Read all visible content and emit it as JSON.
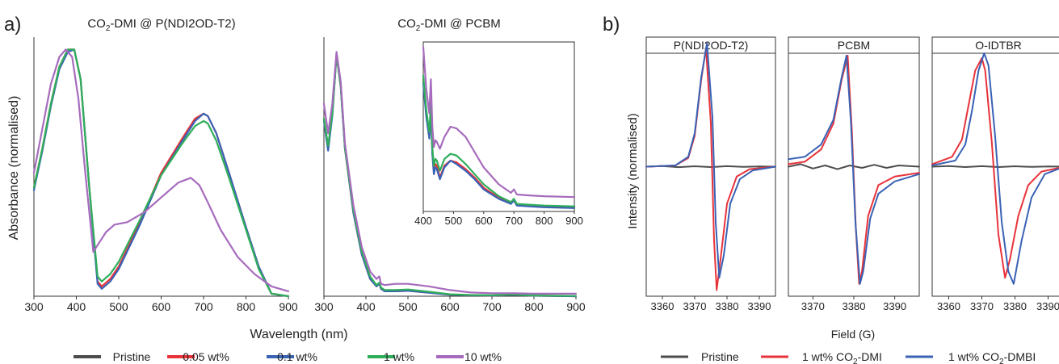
{
  "panel_a": {
    "label": "a)",
    "title_left_parts": [
      "CO",
      "2",
      "-DMI @ P(NDI2OD-T2)"
    ],
    "title_right_parts": [
      "CO",
      "2",
      "-DMI @ PCBM"
    ],
    "xlabel": "Wavelength (nm)",
    "ylabel": "Absorbance (normalised)",
    "legend": [
      {
        "name": "Pristine",
        "color": "#4d4d4d"
      },
      {
        "name": "0.05 wt%",
        "color": "#e8333a"
      },
      {
        "name": "0.1 wt%",
        "color": "#3a62b5"
      },
      {
        "name": "1 wt%",
        "color": "#2fae5a"
      },
      {
        "name": "10 wt%",
        "color": "#a66bbd"
      }
    ]
  },
  "panel_b": {
    "label": "b)",
    "xlabel": "Field (G)",
    "ylabel": "Intensity (normalised)",
    "legend": [
      {
        "parts": [
          "Pristine"
        ],
        "color": "#4d4d4d"
      },
      {
        "parts": [
          "1 wt% CO",
          "2",
          "-DMI"
        ],
        "color": "#e8333a"
      },
      {
        "parts": [
          "1 wt% CO",
          "2",
          "-DMBI"
        ],
        "color": "#3a62b5"
      }
    ]
  },
  "chart_data": [
    {
      "type": "line",
      "id": "abs_polymer",
      "x_range": [
        300,
        900
      ],
      "x_ticks": [
        300,
        400,
        500,
        600,
        700,
        800,
        900
      ],
      "y_range": [
        0,
        1.05
      ],
      "series": [
        {
          "name": "0.05 wt%",
          "color": "#e8333a",
          "x": [
            300,
            320,
            340,
            360,
            380,
            395,
            410,
            430,
            450,
            460,
            480,
            500,
            550,
            600,
            650,
            680,
            700,
            710,
            730,
            760,
            800,
            830,
            860,
            900
          ],
          "y": [
            0.44,
            0.6,
            0.78,
            0.93,
            1.0,
            1.0,
            0.88,
            0.45,
            0.06,
            0.04,
            0.07,
            0.12,
            0.3,
            0.5,
            0.64,
            0.72,
            0.74,
            0.73,
            0.66,
            0.5,
            0.28,
            0.12,
            0.01,
            0
          ]
        },
        {
          "name": "0.1 wt%",
          "color": "#3a62b5",
          "x": [
            300,
            320,
            340,
            360,
            380,
            395,
            410,
            430,
            450,
            460,
            480,
            500,
            550,
            600,
            650,
            680,
            700,
            710,
            730,
            760,
            800,
            830,
            860,
            900
          ],
          "y": [
            0.43,
            0.59,
            0.77,
            0.92,
            0.99,
            1.0,
            0.88,
            0.45,
            0.05,
            0.03,
            0.06,
            0.11,
            0.29,
            0.49,
            0.63,
            0.71,
            0.74,
            0.73,
            0.66,
            0.5,
            0.28,
            0.12,
            0.01,
            0
          ]
        },
        {
          "name": "1 wt%",
          "color": "#2fae5a",
          "x": [
            300,
            320,
            340,
            360,
            380,
            395,
            410,
            430,
            450,
            460,
            480,
            500,
            550,
            600,
            650,
            680,
            700,
            710,
            730,
            760,
            800,
            830,
            860,
            900
          ],
          "y": [
            0.44,
            0.6,
            0.78,
            0.93,
            1.0,
            1.0,
            0.88,
            0.45,
            0.08,
            0.06,
            0.09,
            0.14,
            0.31,
            0.49,
            0.62,
            0.69,
            0.71,
            0.7,
            0.63,
            0.48,
            0.27,
            0.11,
            0.01,
            0
          ]
        },
        {
          "name": "10 wt%",
          "color": "#a66bbd",
          "x": [
            300,
            320,
            340,
            360,
            375,
            390,
            405,
            420,
            440,
            455,
            470,
            490,
            520,
            560,
            600,
            640,
            670,
            690,
            710,
            740,
            780,
            820,
            860,
            900
          ],
          "y": [
            0.5,
            0.68,
            0.86,
            0.97,
            1.0,
            0.97,
            0.8,
            0.52,
            0.18,
            0.22,
            0.26,
            0.29,
            0.3,
            0.34,
            0.4,
            0.46,
            0.48,
            0.45,
            0.38,
            0.27,
            0.16,
            0.09,
            0.04,
            0.02
          ]
        }
      ]
    },
    {
      "type": "line",
      "id": "abs_pcbm",
      "x_range": [
        300,
        900
      ],
      "x_ticks": [
        300,
        400,
        500,
        600,
        700,
        800,
        900
      ],
      "y_range": [
        0,
        1.05
      ],
      "series": [
        {
          "name": "0.05 wt%",
          "color": "#e8333a",
          "x": [
            300,
            310,
            320,
            330,
            340,
            350,
            370,
            390,
            410,
            425,
            432,
            436,
            445,
            470,
            500,
            550,
            600,
            650,
            700,
            750,
            800,
            900
          ],
          "y": [
            0.72,
            0.6,
            0.74,
            0.98,
            0.85,
            0.6,
            0.34,
            0.17,
            0.07,
            0.04,
            0.05,
            0.03,
            0.02,
            0.02,
            0.022,
            0.014,
            0.006,
            0.004,
            0.003,
            0.006,
            0.002,
            0
          ]
        },
        {
          "name": "0.1 wt%",
          "color": "#3a62b5",
          "x": [
            300,
            310,
            320,
            330,
            340,
            350,
            370,
            390,
            410,
            425,
            432,
            436,
            445,
            470,
            500,
            550,
            600,
            650,
            700,
            750,
            800,
            900
          ],
          "y": [
            0.71,
            0.59,
            0.73,
            0.98,
            0.85,
            0.6,
            0.34,
            0.17,
            0.07,
            0.04,
            0.05,
            0.03,
            0.02,
            0.02,
            0.022,
            0.014,
            0.006,
            0.004,
            0.003,
            0.006,
            0.002,
            0
          ]
        },
        {
          "name": "1 wt%",
          "color": "#2fae5a",
          "x": [
            300,
            310,
            320,
            330,
            340,
            350,
            370,
            390,
            410,
            425,
            432,
            436,
            445,
            470,
            500,
            550,
            600,
            650,
            700,
            750,
            800,
            900
          ],
          "y": [
            0.72,
            0.61,
            0.74,
            0.98,
            0.85,
            0.6,
            0.35,
            0.18,
            0.08,
            0.045,
            0.055,
            0.035,
            0.025,
            0.025,
            0.027,
            0.018,
            0.008,
            0.005,
            0.004,
            0.007,
            0.003,
            0.001
          ]
        },
        {
          "name": "10 wt%",
          "color": "#a66bbd",
          "x": [
            300,
            310,
            320,
            330,
            340,
            350,
            370,
            390,
            410,
            425,
            432,
            436,
            445,
            470,
            500,
            550,
            600,
            650,
            700,
            750,
            800,
            900
          ],
          "y": [
            0.78,
            0.66,
            0.78,
            0.99,
            0.87,
            0.62,
            0.37,
            0.2,
            0.1,
            0.07,
            0.08,
            0.05,
            0.045,
            0.05,
            0.05,
            0.04,
            0.025,
            0.015,
            0.012,
            0.012,
            0.01,
            0.01
          ]
        }
      ]
    },
    {
      "type": "line",
      "id": "abs_pcbm_inset",
      "x_range": [
        400,
        900
      ],
      "x_ticks": [
        400,
        500,
        600,
        700,
        800,
        900
      ],
      "y_range": [
        0,
        1
      ],
      "series": [
        {
          "name": "0.05 wt%",
          "color": "#e8333a",
          "x": [
            400,
            410,
            420,
            425,
            430,
            435,
            440,
            445,
            455,
            470,
            490,
            510,
            540,
            570,
            600,
            650,
            690,
            700,
            710,
            750,
            800,
            900
          ],
          "y": [
            0.78,
            0.58,
            0.45,
            0.62,
            0.36,
            0.24,
            0.28,
            0.27,
            0.2,
            0.27,
            0.3,
            0.29,
            0.25,
            0.2,
            0.14,
            0.08,
            0.05,
            0.07,
            0.04,
            0.035,
            0.03,
            0.025
          ]
        },
        {
          "name": "0.1 wt%",
          "color": "#3a62b5",
          "x": [
            400,
            410,
            420,
            425,
            430,
            435,
            440,
            445,
            455,
            470,
            490,
            510,
            540,
            570,
            600,
            650,
            690,
            700,
            710,
            750,
            800,
            900
          ],
          "y": [
            0.76,
            0.56,
            0.43,
            0.6,
            0.34,
            0.22,
            0.26,
            0.25,
            0.19,
            0.26,
            0.3,
            0.28,
            0.24,
            0.19,
            0.13,
            0.075,
            0.045,
            0.065,
            0.035,
            0.03,
            0.025,
            0.02
          ]
        },
        {
          "name": "1 wt%",
          "color": "#2fae5a",
          "x": [
            400,
            410,
            420,
            425,
            430,
            435,
            440,
            445,
            455,
            470,
            490,
            510,
            540,
            570,
            600,
            650,
            690,
            700,
            710,
            750,
            800,
            900
          ],
          "y": [
            0.8,
            0.6,
            0.47,
            0.64,
            0.38,
            0.27,
            0.31,
            0.3,
            0.24,
            0.31,
            0.34,
            0.33,
            0.28,
            0.22,
            0.16,
            0.09,
            0.055,
            0.075,
            0.045,
            0.04,
            0.035,
            0.03
          ]
        },
        {
          "name": "10 wt%",
          "color": "#a66bbd",
          "x": [
            400,
            410,
            420,
            425,
            430,
            435,
            440,
            445,
            455,
            470,
            490,
            510,
            540,
            570,
            600,
            650,
            690,
            700,
            710,
            750,
            800,
            900
          ],
          "y": [
            0.97,
            0.72,
            0.58,
            0.78,
            0.5,
            0.38,
            0.42,
            0.41,
            0.37,
            0.44,
            0.5,
            0.49,
            0.44,
            0.35,
            0.26,
            0.16,
            0.11,
            0.13,
            0.1,
            0.095,
            0.09,
            0.085
          ]
        }
      ]
    },
    {
      "type": "line",
      "id": "epr_polymer",
      "title": "P(NDI2OD-T2)",
      "x_range": [
        3355,
        3395
      ],
      "x_ticks": [
        3360,
        3370,
        3380,
        3390
      ],
      "y_range": [
        -1.05,
        1.05
      ],
      "series": [
        {
          "name": "Pristine",
          "color": "#4d4d4d",
          "x": [
            3355,
            3360,
            3365,
            3370,
            3375,
            3380,
            3385,
            3390,
            3395
          ],
          "y": [
            0,
            0.005,
            -0.004,
            0.003,
            -0.003,
            0.004,
            -0.002,
            0.002,
            0
          ]
        },
        {
          "name": "1 wt% CO2-DMI",
          "color": "#e8333a",
          "x": [
            3355,
            3364,
            3368,
            3370,
            3372,
            3373.5,
            3375,
            3376,
            3376.8,
            3378,
            3380,
            3383,
            3387,
            3395
          ],
          "y": [
            0,
            0.01,
            0.07,
            0.25,
            0.7,
            0.96,
            0.35,
            -0.6,
            -1.0,
            -0.75,
            -0.3,
            -0.08,
            -0.02,
            0
          ]
        },
        {
          "name": "1 wt% CO2-DMBI",
          "color": "#3a62b5",
          "x": [
            3355,
            3364,
            3368,
            3370,
            3372,
            3373.8,
            3375.5,
            3376.5,
            3377.6,
            3379,
            3381,
            3384,
            3388,
            3395
          ],
          "y": [
            0,
            0.01,
            0.08,
            0.27,
            0.72,
            1.0,
            0.4,
            -0.45,
            -0.9,
            -0.72,
            -0.3,
            -0.1,
            -0.03,
            0
          ]
        }
      ]
    },
    {
      "type": "line",
      "id": "epr_pcbm",
      "title": "PCBM",
      "x_range": [
        3364,
        3396
      ],
      "x_ticks": [
        3370,
        3380,
        3390
      ],
      "y_range": [
        -1.05,
        1.05
      ],
      "series": [
        {
          "name": "Pristine",
          "color": "#4d4d4d",
          "x": [
            3364,
            3367,
            3370,
            3373,
            3376,
            3379,
            3382,
            3385,
            3388,
            3391,
            3396
          ],
          "y": [
            0,
            0.02,
            -0.015,
            0.01,
            -0.02,
            0.01,
            -0.01,
            0.015,
            -0.01,
            0.01,
            0
          ]
        },
        {
          "name": "1 wt% CO2-DMI",
          "color": "#e8333a",
          "x": [
            3364,
            3368,
            3372,
            3375,
            3377,
            3378.5,
            3379.5,
            3380.5,
            3381.3,
            3382,
            3383.5,
            3386,
            3390,
            3396
          ],
          "y": [
            0.02,
            0.04,
            0.14,
            0.35,
            0.7,
            0.9,
            0.3,
            -0.5,
            -0.95,
            -0.85,
            -0.4,
            -0.15,
            -0.08,
            -0.05
          ]
        },
        {
          "name": "1 wt% CO2-DMBI",
          "color": "#3a62b5",
          "x": [
            3364,
            3368,
            3372,
            3375,
            3377,
            3378.2,
            3379.3,
            3380.4,
            3381.5,
            3382.3,
            3384,
            3386,
            3390,
            3396
          ],
          "y": [
            0.06,
            0.08,
            0.18,
            0.38,
            0.72,
            0.9,
            0.35,
            -0.45,
            -0.95,
            -0.85,
            -0.42,
            -0.22,
            -0.12,
            -0.06
          ]
        }
      ]
    },
    {
      "type": "line",
      "id": "epr_oidtbr",
      "title": "O-IDTBR",
      "x_range": [
        3355,
        3395
      ],
      "x_ticks": [
        3360,
        3370,
        3380,
        3390
      ],
      "y_range": [
        -1.05,
        1.05
      ],
      "series": [
        {
          "name": "Pristine",
          "color": "#4d4d4d",
          "x": [
            3355,
            3360,
            3365,
            3370,
            3375,
            3380,
            3385,
            3390,
            3395
          ],
          "y": [
            0,
            0.005,
            -0.003,
            0.004,
            -0.003,
            0.003,
            -0.002,
            0.002,
            0
          ]
        },
        {
          "name": "1 wt% CO2-DMI",
          "color": "#e8333a",
          "x": [
            3355,
            3361,
            3364,
            3366,
            3368,
            3370,
            3371,
            3373,
            3375,
            3377,
            3378.5,
            3381,
            3384,
            3388,
            3395
          ],
          "y": [
            0.02,
            0.08,
            0.22,
            0.5,
            0.78,
            0.88,
            0.78,
            0.2,
            -0.55,
            -0.9,
            -0.75,
            -0.4,
            -0.15,
            -0.04,
            0
          ]
        },
        {
          "name": "1 wt% CO2-DMBI",
          "color": "#3a62b5",
          "x": [
            3355,
            3362,
            3365,
            3367,
            3369,
            3370.7,
            3372,
            3374,
            3376,
            3378,
            3379.6,
            3382,
            3385,
            3389,
            3395
          ],
          "y": [
            0.01,
            0.05,
            0.18,
            0.45,
            0.78,
            0.92,
            0.82,
            0.25,
            -0.45,
            -0.85,
            -0.95,
            -0.6,
            -0.25,
            -0.06,
            0
          ]
        }
      ]
    }
  ]
}
